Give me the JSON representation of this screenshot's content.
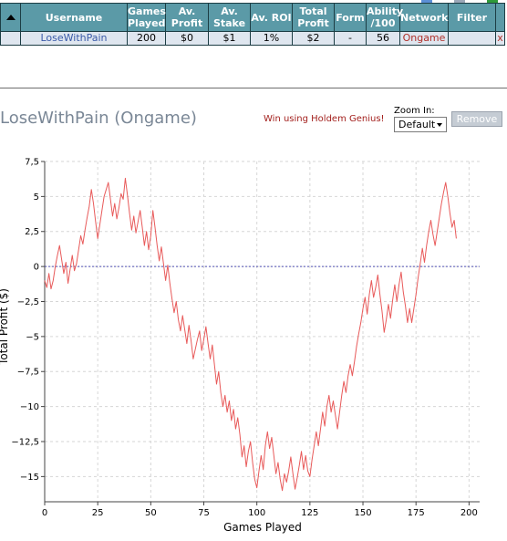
{
  "table": {
    "headers": [
      {
        "key": "sort",
        "label": ""
      },
      {
        "key": "username",
        "label": "Username"
      },
      {
        "key": "games",
        "label": "Games Played"
      },
      {
        "key": "avprofit",
        "label": "Av. Profit"
      },
      {
        "key": "avstake",
        "label": "Av. Stake"
      },
      {
        "key": "avroi",
        "label": "Av. ROI"
      },
      {
        "key": "totalprofit",
        "label": "Total Profit"
      },
      {
        "key": "form",
        "label": "Form"
      },
      {
        "key": "ability",
        "label": "Ability /100"
      },
      {
        "key": "network",
        "label": "Network"
      },
      {
        "key": "filter",
        "label": "Filter"
      },
      {
        "key": "close",
        "label": ""
      }
    ],
    "row": {
      "sort": "",
      "username": "LoseWithPain",
      "games": "200",
      "avprofit": "$0",
      "avstake": "$1",
      "avroi": "1%",
      "totalprofit": "$2",
      "form": "-",
      "ability": "56",
      "network": "Ongame",
      "filter": "",
      "close": "x"
    }
  },
  "player": {
    "title": "LoseWithPain (Ongame)",
    "promo": "Win using Holdem Genius!",
    "zoom_label": "Zoom In:",
    "zoom_value": "Default",
    "remove_label": "Remove"
  },
  "colors": {
    "header_bg": "#5b9aa7",
    "row_bg": "#dfe6ef",
    "line": "#e85a5a",
    "zero_line": "#5050b4",
    "promo": "#a3201d"
  },
  "chart_data": {
    "type": "line",
    "xlabel": "Games Played",
    "ylabel": "Total Profit ($)",
    "xlim": [
      0,
      205
    ],
    "ylim": [
      -16.8,
      7.5
    ],
    "xticks": [
      0,
      25,
      50,
      75,
      100,
      125,
      150,
      175,
      200
    ],
    "xtick_labels": [
      "0",
      "25",
      "50",
      "75",
      "100",
      "125",
      "150",
      "175",
      "200"
    ],
    "yticks": [
      7.5,
      5,
      2.5,
      0,
      -2.5,
      -5,
      -7.5,
      -10,
      -12.5,
      -15
    ],
    "ytick_labels": [
      "7,5",
      "5",
      "2,5",
      "0",
      "−2,5",
      "−5",
      "−7,5",
      "−10",
      "−12,5",
      "−15"
    ],
    "grid": true,
    "series": [
      {
        "points": [
          [
            0,
            -1
          ],
          [
            1,
            -1.5
          ],
          [
            2,
            -0.5
          ],
          [
            3,
            -1.6
          ],
          [
            4,
            -1
          ],
          [
            5,
            0
          ],
          [
            6,
            0.8
          ],
          [
            7,
            1.5
          ],
          [
            8,
            0.5
          ],
          [
            9,
            -0.5
          ],
          [
            10,
            0.3
          ],
          [
            11,
            -1.2
          ],
          [
            12,
            -0.2
          ],
          [
            13,
            0.8
          ],
          [
            14,
            -0.3
          ],
          [
            15,
            0.2
          ],
          [
            16,
            1.2
          ],
          [
            17,
            2.2
          ],
          [
            18,
            1.6
          ],
          [
            19,
            2.6
          ],
          [
            20,
            3.5
          ],
          [
            21,
            4.3
          ],
          [
            22,
            5.5
          ],
          [
            23,
            4.5
          ],
          [
            24,
            3.2
          ],
          [
            25,
            2
          ],
          [
            26,
            3
          ],
          [
            27,
            4
          ],
          [
            28,
            5
          ],
          [
            29,
            5.5
          ],
          [
            30,
            6
          ],
          [
            31,
            4.8
          ],
          [
            32,
            3.6
          ],
          [
            33,
            4.5
          ],
          [
            34,
            3.4
          ],
          [
            35,
            4.2
          ],
          [
            36,
            5.2
          ],
          [
            37,
            4.8
          ],
          [
            38,
            6.3
          ],
          [
            39,
            5.1
          ],
          [
            40,
            3.8
          ],
          [
            41,
            2.6
          ],
          [
            42,
            3.6
          ],
          [
            43,
            2.4
          ],
          [
            44,
            3.2
          ],
          [
            45,
            4
          ],
          [
            46,
            2.8
          ],
          [
            47,
            1.5
          ],
          [
            48,
            2.5
          ],
          [
            49,
            1.2
          ],
          [
            50,
            2.2
          ],
          [
            51,
            4
          ],
          [
            52,
            2.8
          ],
          [
            53,
            1.5
          ],
          [
            54,
            0.4
          ],
          [
            55,
            1.4
          ],
          [
            56,
            0.2
          ],
          [
            57,
            -1
          ],
          [
            58,
            0.1
          ],
          [
            59,
            -1.2
          ],
          [
            60,
            -2.3
          ],
          [
            61,
            -3.3
          ],
          [
            62,
            -2.5
          ],
          [
            63,
            -3.8
          ],
          [
            64,
            -4.6
          ],
          [
            65,
            -3.5
          ],
          [
            66,
            -4.5
          ],
          [
            67,
            -5.5
          ],
          [
            68,
            -4.2
          ],
          [
            69,
            -5.3
          ],
          [
            70,
            -6.6
          ],
          [
            71,
            -5.9
          ],
          [
            72,
            -5.2
          ],
          [
            73,
            -4.6
          ],
          [
            74,
            -6
          ],
          [
            75,
            -5.2
          ],
          [
            76,
            -4.3
          ],
          [
            77,
            -5.5
          ],
          [
            78,
            -6.6
          ],
          [
            79,
            -5.6
          ],
          [
            80,
            -7
          ],
          [
            81,
            -8.4
          ],
          [
            82,
            -7.5
          ],
          [
            83,
            -9
          ],
          [
            84,
            -10
          ],
          [
            85,
            -9.2
          ],
          [
            86,
            -10.4
          ],
          [
            87,
            -9.6
          ],
          [
            88,
            -11
          ],
          [
            89,
            -10.2
          ],
          [
            90,
            -11.6
          ],
          [
            91,
            -10.8
          ],
          [
            92,
            -12
          ],
          [
            93,
            -13.6
          ],
          [
            94,
            -12.8
          ],
          [
            95,
            -14.3
          ],
          [
            96,
            -13.2
          ],
          [
            97,
            -12.5
          ],
          [
            98,
            -14
          ],
          [
            99,
            -15.2
          ],
          [
            100,
            -15.8
          ],
          [
            101,
            -14.6
          ],
          [
            102,
            -13.5
          ],
          [
            103,
            -14.5
          ],
          [
            104,
            -12.8
          ],
          [
            105,
            -11.8
          ],
          [
            106,
            -13
          ],
          [
            107,
            -12.2
          ],
          [
            108,
            -13.5
          ],
          [
            109,
            -14.8
          ],
          [
            110,
            -14
          ],
          [
            111,
            -15.2
          ],
          [
            112,
            -16
          ],
          [
            113,
            -14.8
          ],
          [
            114,
            -15.4
          ],
          [
            115,
            -14.6
          ],
          [
            116,
            -13.6
          ],
          [
            117,
            -14.8
          ],
          [
            118,
            -15.9
          ],
          [
            119,
            -15.1
          ],
          [
            120,
            -14.2
          ],
          [
            121,
            -13.2
          ],
          [
            122,
            -14.5
          ],
          [
            123,
            -13.5
          ],
          [
            124,
            -14.6
          ],
          [
            125,
            -15
          ],
          [
            126,
            -13.8
          ],
          [
            127,
            -12.8
          ],
          [
            128,
            -11.8
          ],
          [
            129,
            -12.8
          ],
          [
            130,
            -11.6
          ],
          [
            131,
            -10.4
          ],
          [
            132,
            -11.4
          ],
          [
            133,
            -10
          ],
          [
            134,
            -9.2
          ],
          [
            135,
            -10.4
          ],
          [
            136,
            -9.6
          ],
          [
            137,
            -10.6
          ],
          [
            138,
            -11.6
          ],
          [
            139,
            -10.4
          ],
          [
            140,
            -9.2
          ],
          [
            141,
            -8.2
          ],
          [
            142,
            -9
          ],
          [
            143,
            -7.8
          ],
          [
            144,
            -7
          ],
          [
            145,
            -7.8
          ],
          [
            146,
            -6.8
          ],
          [
            147,
            -5.7
          ],
          [
            148,
            -4.8
          ],
          [
            149,
            -4
          ],
          [
            150,
            -3
          ],
          [
            151,
            -2.2
          ],
          [
            152,
            -3.4
          ],
          [
            153,
            -2
          ],
          [
            154,
            -1
          ],
          [
            155,
            -2.2
          ],
          [
            156,
            -1.5
          ],
          [
            157,
            -0.6
          ],
          [
            158,
            -2
          ],
          [
            159,
            -3.2
          ],
          [
            160,
            -4.7
          ],
          [
            161,
            -3.8
          ],
          [
            162,
            -2.7
          ],
          [
            163,
            -3.7
          ],
          [
            164,
            -2.4
          ],
          [
            165,
            -1.3
          ],
          [
            166,
            -2.5
          ],
          [
            167,
            -1.3
          ],
          [
            168,
            -0.4
          ],
          [
            169,
            -1.8
          ],
          [
            170,
            -2.8
          ],
          [
            171,
            -4
          ],
          [
            172,
            -3
          ],
          [
            173,
            -4
          ],
          [
            174,
            -3
          ],
          [
            175,
            -2
          ],
          [
            176,
            -0.8
          ],
          [
            177,
            0.2
          ],
          [
            178,
            1.3
          ],
          [
            179,
            0.3
          ],
          [
            180,
            1.5
          ],
          [
            181,
            2.5
          ],
          [
            182,
            3.3
          ],
          [
            183,
            2.3
          ],
          [
            184,
            1.5
          ],
          [
            185,
            2.5
          ],
          [
            186,
            3.5
          ],
          [
            187,
            4.5
          ],
          [
            188,
            5.3
          ],
          [
            189,
            6
          ],
          [
            190,
            5
          ],
          [
            191,
            3.8
          ],
          [
            192,
            2.8
          ],
          [
            193,
            3.3
          ],
          [
            194,
            2
          ]
        ]
      }
    ]
  }
}
